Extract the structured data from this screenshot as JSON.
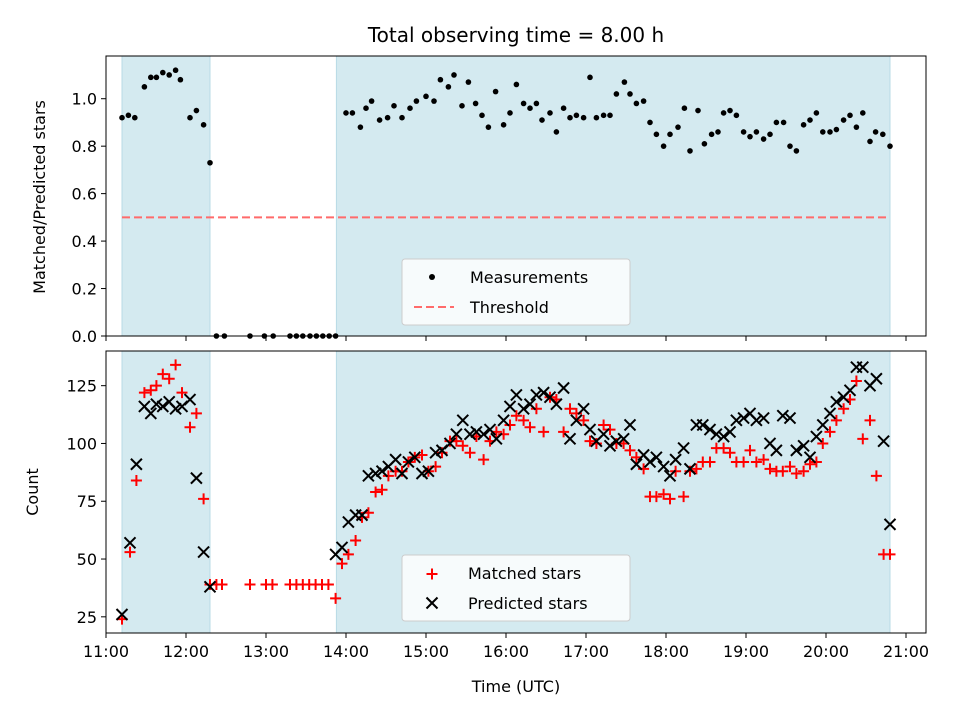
{
  "chart_data": [
    {
      "type": "scatter",
      "title": "Total observing time = 8.00 h",
      "ylabel": "Matched/Predicted stars",
      "xlim": [
        11.0,
        21.25
      ],
      "ylim": [
        0.0,
        1.18
      ],
      "yticks": [
        "0.0",
        "0.2",
        "0.4",
        "0.6",
        "0.8",
        "1.0"
      ],
      "shaded_intervals": [
        [
          11.2,
          12.3
        ],
        [
          13.88,
          20.8
        ]
      ],
      "threshold": {
        "value": 0.5,
        "x_range": [
          11.2,
          20.8
        ],
        "color": "#ff6b6b"
      },
      "legend": {
        "placement": "lower-center",
        "entries": [
          "Measurements",
          "Threshold"
        ]
      },
      "series": [
        {
          "name": "Measurements",
          "x": [
            11.2,
            11.28,
            11.36,
            11.48,
            11.56,
            11.63,
            11.71,
            11.79,
            11.87,
            11.93,
            12.05,
            12.13,
            12.22,
            12.3,
            12.38,
            12.48,
            12.8,
            12.98,
            13.09,
            13.3,
            13.38,
            13.46,
            13.55,
            13.63,
            13.71,
            13.79,
            13.87,
            14.0,
            14.08,
            14.18,
            14.25,
            14.32,
            14.42,
            14.52,
            14.6,
            14.7,
            14.8,
            14.88,
            15.0,
            15.1,
            15.18,
            15.28,
            15.35,
            15.45,
            15.53,
            15.62,
            15.7,
            15.78,
            15.87,
            15.97,
            16.05,
            16.13,
            16.22,
            16.3,
            16.38,
            16.45,
            16.55,
            16.63,
            16.72,
            16.8,
            16.88,
            16.97,
            17.05,
            17.13,
            17.22,
            17.3,
            17.38,
            17.48,
            17.55,
            17.63,
            17.72,
            17.8,
            17.88,
            17.97,
            18.05,
            18.15,
            18.23,
            18.3,
            18.4,
            18.48,
            18.57,
            18.65,
            18.72,
            18.8,
            18.88,
            18.97,
            19.05,
            19.13,
            19.22,
            19.3,
            19.38,
            19.47,
            19.55,
            19.63,
            19.72,
            19.8,
            19.88,
            19.96,
            20.05,
            20.13,
            20.22,
            20.3,
            20.38,
            20.46,
            20.55,
            20.62,
            20.71,
            20.8
          ],
          "y": [
            0.92,
            0.93,
            0.92,
            1.05,
            1.09,
            1.09,
            1.11,
            1.1,
            1.12,
            1.08,
            0.92,
            0.95,
            0.89,
            0.73,
            0.0,
            0.0,
            0.0,
            0.0,
            0.0,
            0.0,
            0.0,
            0.0,
            0.0,
            0.0,
            0.0,
            0.0,
            0.0,
            0.94,
            0.94,
            0.88,
            0.96,
            0.99,
            0.91,
            0.92,
            0.97,
            0.92,
            0.96,
            0.99,
            1.01,
            0.99,
            1.08,
            1.05,
            1.1,
            0.97,
            1.07,
            0.98,
            0.93,
            0.88,
            1.03,
            0.89,
            0.94,
            1.06,
            0.98,
            0.96,
            0.98,
            0.91,
            0.94,
            0.86,
            0.96,
            0.92,
            0.93,
            0.92,
            1.09,
            0.92,
            0.93,
            0.93,
            1.02,
            1.07,
            1.02,
            0.98,
            0.99,
            0.9,
            0.85,
            0.8,
            0.85,
            0.88,
            0.96,
            0.78,
            0.95,
            0.81,
            0.85,
            0.86,
            0.94,
            0.95,
            0.93,
            0.86,
            0.84,
            0.86,
            0.83,
            0.85,
            0.9,
            0.9,
            0.8,
            0.78,
            0.89,
            0.91,
            0.94,
            0.86,
            0.86,
            0.87,
            0.91,
            0.93,
            0.88,
            0.94,
            0.82,
            0.86,
            0.85,
            0.8
          ]
        }
      ]
    },
    {
      "type": "scatter",
      "xlabel": "Time (UTC)",
      "ylabel": "Count",
      "xlim": [
        11.0,
        21.25
      ],
      "ylim": [
        18,
        140
      ],
      "xticks": [
        "11:00",
        "12:00",
        "13:00",
        "14:00",
        "15:00",
        "16:00",
        "17:00",
        "18:00",
        "19:00",
        "20:00",
        "21:00"
      ],
      "yticks": [
        "25",
        "50",
        "75",
        "100",
        "125"
      ],
      "shaded_intervals": [
        [
          11.2,
          12.3
        ],
        [
          13.88,
          20.8
        ]
      ],
      "legend": {
        "placement": "lower-center",
        "entries": [
          "Matched stars",
          "Predicted stars"
        ]
      },
      "series": [
        {
          "name": "Matched stars",
          "marker": "plus",
          "color": "#ff0000",
          "x": [
            11.2,
            11.3,
            11.38,
            11.48,
            11.56,
            11.63,
            11.71,
            11.79,
            11.87,
            11.95,
            12.05,
            12.13,
            12.22,
            12.3,
            12.38,
            12.45,
            12.8,
            13.0,
            13.08,
            13.3,
            13.38,
            13.46,
            13.54,
            13.62,
            13.7,
            13.78,
            13.87,
            13.95,
            14.03,
            14.12,
            14.2,
            14.28,
            14.37,
            14.45,
            14.53,
            14.62,
            14.7,
            14.78,
            14.86,
            14.95,
            15.03,
            15.12,
            15.2,
            15.3,
            15.38,
            15.46,
            15.55,
            15.63,
            15.72,
            15.8,
            15.88,
            15.97,
            16.05,
            16.13,
            16.22,
            16.3,
            16.38,
            16.47,
            16.55,
            16.63,
            16.72,
            16.8,
            16.88,
            16.97,
            17.05,
            17.13,
            17.22,
            17.3,
            17.38,
            17.47,
            17.55,
            17.63,
            17.72,
            17.8,
            17.88,
            17.97,
            18.05,
            18.12,
            18.22,
            18.3,
            18.38,
            18.46,
            18.55,
            18.63,
            18.72,
            18.8,
            18.88,
            18.97,
            19.05,
            19.13,
            19.22,
            19.3,
            19.38,
            19.46,
            19.55,
            19.63,
            19.72,
            19.8,
            19.88,
            19.96,
            20.05,
            20.13,
            20.22,
            20.3,
            20.38,
            20.46,
            20.55,
            20.63,
            20.72,
            20.8
          ],
          "y": [
            24,
            53,
            84,
            122,
            123,
            125,
            130,
            128,
            134,
            122,
            107,
            113,
            76,
            39,
            39,
            39,
            39,
            39,
            39,
            39,
            39,
            39,
            39,
            39,
            39,
            39,
            33,
            48,
            52,
            58,
            68,
            70,
            79,
            80,
            86,
            88,
            88,
            92,
            94,
            95,
            88,
            90,
            96,
            101,
            101,
            99,
            96,
            103,
            93,
            101,
            105,
            104,
            108,
            112,
            110,
            107,
            115,
            105,
            120,
            119,
            105,
            115,
            113,
            110,
            101,
            100,
            108,
            106,
            100,
            100,
            97,
            94,
            89,
            77,
            77,
            78,
            76,
            88,
            77,
            88,
            89,
            92,
            92,
            98,
            98,
            96,
            92,
            92,
            97,
            92,
            93,
            89,
            88,
            88,
            90,
            87,
            88,
            91,
            92,
            100,
            105,
            110,
            115,
            119,
            127,
            102,
            110,
            86,
            52,
            52
          ]
        },
        {
          "name": "Predicted stars",
          "marker": "x",
          "color": "#000000",
          "x": [
            11.2,
            11.3,
            11.38,
            11.48,
            11.56,
            11.63,
            11.71,
            11.79,
            11.87,
            11.95,
            12.05,
            12.13,
            12.22,
            12.3,
            13.87,
            13.95,
            14.03,
            14.12,
            14.2,
            14.28,
            14.37,
            14.45,
            14.53,
            14.62,
            14.7,
            14.78,
            14.86,
            14.95,
            15.03,
            15.12,
            15.2,
            15.3,
            15.38,
            15.46,
            15.55,
            15.63,
            15.72,
            15.8,
            15.88,
            15.97,
            16.05,
            16.13,
            16.22,
            16.3,
            16.38,
            16.47,
            16.55,
            16.63,
            16.72,
            16.8,
            16.88,
            16.97,
            17.05,
            17.13,
            17.22,
            17.3,
            17.38,
            17.47,
            17.55,
            17.63,
            17.72,
            17.8,
            17.88,
            17.97,
            18.05,
            18.12,
            18.22,
            18.3,
            18.38,
            18.46,
            18.55,
            18.63,
            18.72,
            18.8,
            18.88,
            18.97,
            19.05,
            19.13,
            19.22,
            19.3,
            19.38,
            19.46,
            19.55,
            19.63,
            19.72,
            19.8,
            19.88,
            19.96,
            20.05,
            20.13,
            20.22,
            20.3,
            20.38,
            20.46,
            20.55,
            20.63,
            20.72,
            20.8
          ],
          "y": [
            26,
            57,
            91,
            116,
            113,
            117,
            116,
            118,
            115,
            116,
            119,
            85,
            53,
            38,
            52,
            55,
            66,
            69,
            69,
            86,
            87,
            88,
            90,
            93,
            87,
            92,
            94,
            87,
            88,
            96,
            97,
            100,
            104,
            110,
            104,
            105,
            104,
            106,
            102,
            110,
            116,
            121,
            115,
            117,
            121,
            122,
            120,
            117,
            124,
            102,
            110,
            115,
            106,
            101,
            104,
            99,
            101,
            102,
            108,
            91,
            95,
            92,
            94,
            90,
            86,
            93,
            98,
            89,
            108,
            108,
            106,
            104,
            103,
            105,
            110,
            111,
            113,
            110,
            111,
            100,
            97,
            112,
            111,
            97,
            99,
            94,
            103,
            108,
            113,
            118,
            120,
            123,
            133,
            133,
            125,
            128,
            101,
            65
          ]
        }
      ]
    }
  ]
}
